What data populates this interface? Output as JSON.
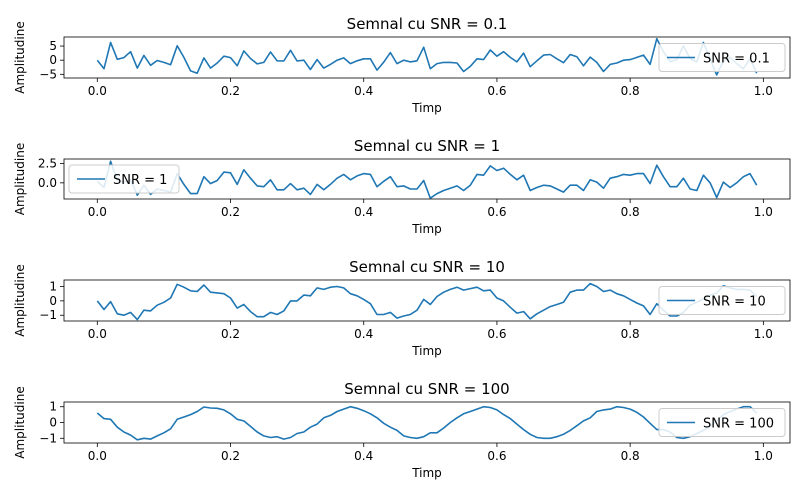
{
  "chart_data": [
    {
      "type": "line",
      "title": "Semnal cu SNR = 0.1",
      "xlabel": "Timp",
      "ylabel": "Amplitudine",
      "xlim": [
        -0.05,
        1.04
      ],
      "ylim": [
        -6.3,
        8.2
      ],
      "xticks": [
        0.0,
        0.2,
        0.4,
        0.6,
        0.8,
        1.0
      ],
      "xtick_labels": [
        "0.0",
        "0.2",
        "0.4",
        "0.6",
        "0.8",
        "1.0"
      ],
      "yticks": [
        -5,
        0,
        5
      ],
      "ytick_labels": [
        "−5",
        "0",
        "5"
      ],
      "legend_position": "right",
      "color": "#1f77b4",
      "series": [
        {
          "name": "SNR = 0.1",
          "x": [
            0.0,
            0.01,
            0.02,
            0.03,
            0.04,
            0.05,
            0.06,
            0.07,
            0.08,
            0.09,
            0.1,
            0.11,
            0.12,
            0.13,
            0.14,
            0.15,
            0.16,
            0.17,
            0.18,
            0.19,
            0.2,
            0.21,
            0.22,
            0.23,
            0.24,
            0.25,
            0.26,
            0.27,
            0.28,
            0.29,
            0.3,
            0.31,
            0.32,
            0.33,
            0.34,
            0.35,
            0.36,
            0.37,
            0.38,
            0.39,
            0.4,
            0.41,
            0.42,
            0.43,
            0.44,
            0.45,
            0.46,
            0.47,
            0.48,
            0.49,
            0.5,
            0.51,
            0.52,
            0.53,
            0.54,
            0.55,
            0.56,
            0.57,
            0.58,
            0.59,
            0.6,
            0.61,
            0.62,
            0.63,
            0.64,
            0.65,
            0.66,
            0.67,
            0.68,
            0.69,
            0.7,
            0.71,
            0.72,
            0.73,
            0.74,
            0.75,
            0.76,
            0.77,
            0.78,
            0.79,
            0.8,
            0.81,
            0.82,
            0.83,
            0.84,
            0.85,
            0.86,
            0.87,
            0.88,
            0.89,
            0.9,
            0.91,
            0.92,
            0.93,
            0.94,
            0.95,
            0.96,
            0.97,
            0.98,
            0.99
          ],
          "values": [
            0.0,
            -3.0,
            6.3,
            0.3,
            0.9,
            3.0,
            -2.8,
            1.7,
            -1.8,
            -0.1,
            -0.8,
            -1.6,
            5.1,
            1.0,
            -3.8,
            -4.6,
            0.8,
            -2.8,
            -1.0,
            1.4,
            0.9,
            -2.0,
            3.3,
            0.6,
            -1.3,
            -0.8,
            2.9,
            -0.2,
            -0.3,
            3.5,
            -0.3,
            0.0,
            -3.3,
            0.2,
            -2.8,
            -1.5,
            0.0,
            0.8,
            -1.2,
            -0.2,
            0.5,
            0.5,
            -3.5,
            -0.7,
            2.7,
            -1.2,
            0.0,
            -0.6,
            -0.2,
            4.6,
            -3.0,
            -1.2,
            -0.8,
            -0.8,
            -1.0,
            -4.0,
            -2.2,
            0.5,
            0.2,
            3.6,
            1.4,
            3.0,
            1.0,
            -0.6,
            2.5,
            -2.3,
            -0.2,
            1.8,
            2.0,
            0.5,
            -0.9,
            2.0,
            1.2,
            -2.0,
            1.1,
            -0.8,
            -4.0,
            -1.5,
            -1.0,
            0.0,
            0.2,
            1.0,
            1.8,
            -1.5,
            7.6,
            3.0,
            -0.5,
            0.2,
            5.0,
            0.6,
            -0.6,
            6.3,
            0.5,
            -5.2,
            -0.3,
            1.0,
            -1.2,
            -3.0,
            0.6,
            -4.6
          ]
        }
      ]
    },
    {
      "type": "line",
      "title": "Semnal cu SNR = 1",
      "xlabel": "Timp",
      "ylabel": "Amplitudine",
      "xlim": [
        -0.05,
        1.04
      ],
      "ylim": [
        -2.1,
        3.1
      ],
      "xticks": [
        0.0,
        0.2,
        0.4,
        0.6,
        0.8,
        1.0
      ],
      "xtick_labels": [
        "0.0",
        "0.2",
        "0.4",
        "0.6",
        "0.8",
        "1.0"
      ],
      "yticks": [
        0.0,
        2.5
      ],
      "ytick_labels": [
        "0.0",
        "2.5"
      ],
      "legend_position": "left",
      "color": "#1f77b4",
      "series": [
        {
          "name": "SNR = 1",
          "x": [
            0.0,
            0.01,
            0.02,
            0.03,
            0.04,
            0.05,
            0.06,
            0.07,
            0.08,
            0.09,
            0.1,
            0.11,
            0.12,
            0.13,
            0.14,
            0.15,
            0.16,
            0.17,
            0.18,
            0.19,
            0.2,
            0.21,
            0.22,
            0.23,
            0.24,
            0.25,
            0.26,
            0.27,
            0.28,
            0.29,
            0.3,
            0.31,
            0.32,
            0.33,
            0.34,
            0.35,
            0.36,
            0.37,
            0.38,
            0.39,
            0.4,
            0.41,
            0.42,
            0.43,
            0.44,
            0.45,
            0.46,
            0.47,
            0.48,
            0.49,
            0.5,
            0.51,
            0.52,
            0.53,
            0.54,
            0.55,
            0.56,
            0.57,
            0.58,
            0.59,
            0.6,
            0.61,
            0.62,
            0.63,
            0.64,
            0.65,
            0.66,
            0.67,
            0.68,
            0.69,
            0.7,
            0.71,
            0.72,
            0.73,
            0.74,
            0.75,
            0.76,
            0.77,
            0.78,
            0.79,
            0.8,
            0.81,
            0.82,
            0.83,
            0.84,
            0.85,
            0.86,
            0.87,
            0.88,
            0.89,
            0.9,
            0.91,
            0.92,
            0.93,
            0.94,
            0.95,
            0.96,
            0.97,
            0.98,
            0.99
          ],
          "values": [
            0.2,
            -0.6,
            2.8,
            0.3,
            0.1,
            0.4,
            -1.6,
            -0.3,
            -1.5,
            -0.8,
            -1.0,
            -1.2,
            1.2,
            -0.2,
            -1.4,
            -1.4,
            0.8,
            -0.1,
            0.3,
            1.4,
            1.3,
            -0.2,
            1.7,
            0.6,
            -0.4,
            -0.5,
            0.4,
            -0.9,
            -0.9,
            -0.1,
            -0.9,
            -0.7,
            -1.5,
            -0.2,
            -0.9,
            -0.2,
            0.6,
            1.1,
            0.4,
            0.9,
            1.2,
            1.1,
            -0.5,
            0.2,
            0.8,
            -0.5,
            -0.4,
            -0.8,
            -0.8,
            0.3,
            -2.0,
            -1.4,
            -1.0,
            -0.7,
            -0.4,
            -1.0,
            -0.3,
            1.1,
            1.0,
            2.2,
            1.6,
            1.9,
            1.1,
            0.4,
            1.0,
            -1.0,
            -0.6,
            -0.3,
            -0.4,
            -0.8,
            -1.2,
            -0.3,
            -0.3,
            -1.0,
            0.4,
            0.1,
            -0.7,
            0.6,
            0.8,
            1.1,
            1.0,
            1.2,
            1.2,
            -0.1,
            2.3,
            0.8,
            -0.5,
            -0.5,
            0.6,
            -0.8,
            -1.0,
            1.0,
            0.0,
            -1.9,
            0.1,
            -0.6,
            0.0,
            0.8,
            1.2,
            -0.3
          ]
        }
      ]
    },
    {
      "type": "line",
      "title": "Semnal cu SNR = 10",
      "xlabel": "Timp",
      "ylabel": "Amplitudine",
      "xlim": [
        -0.05,
        1.04
      ],
      "ylim": [
        -1.4,
        1.45
      ],
      "xticks": [
        0.0,
        0.2,
        0.4,
        0.6,
        0.8,
        1.0
      ],
      "xtick_labels": [
        "0.0",
        "0.2",
        "0.4",
        "0.6",
        "0.8",
        "1.0"
      ],
      "yticks": [
        -1,
        0,
        1
      ],
      "ytick_labels": [
        "−1",
        "0",
        "1"
      ],
      "legend_position": "right",
      "color": "#1f77b4",
      "series": [
        {
          "name": "SNR = 10",
          "x": [
            0.0,
            0.01,
            0.02,
            0.03,
            0.04,
            0.05,
            0.06,
            0.07,
            0.08,
            0.09,
            0.1,
            0.11,
            0.12,
            0.13,
            0.14,
            0.15,
            0.16,
            0.17,
            0.18,
            0.19,
            0.2,
            0.21,
            0.22,
            0.23,
            0.24,
            0.25,
            0.26,
            0.27,
            0.28,
            0.29,
            0.3,
            0.31,
            0.32,
            0.33,
            0.34,
            0.35,
            0.36,
            0.37,
            0.38,
            0.39,
            0.4,
            0.41,
            0.42,
            0.43,
            0.44,
            0.45,
            0.46,
            0.47,
            0.48,
            0.49,
            0.5,
            0.51,
            0.52,
            0.53,
            0.54,
            0.55,
            0.56,
            0.57,
            0.58,
            0.59,
            0.6,
            0.61,
            0.62,
            0.63,
            0.64,
            0.65,
            0.66,
            0.67,
            0.68,
            0.69,
            0.7,
            0.71,
            0.72,
            0.73,
            0.74,
            0.75,
            0.76,
            0.77,
            0.78,
            0.79,
            0.8,
            0.81,
            0.82,
            0.83,
            0.84,
            0.85,
            0.86,
            0.87,
            0.88,
            0.89,
            0.9,
            0.91,
            0.92,
            0.93,
            0.94,
            0.95,
            0.96,
            0.97,
            0.98,
            0.99
          ],
          "values": [
            0.0,
            -0.6,
            -0.05,
            -0.9,
            -1.0,
            -0.8,
            -1.3,
            -0.65,
            -0.7,
            -0.3,
            -0.1,
            0.2,
            1.15,
            0.95,
            0.7,
            0.65,
            1.1,
            0.6,
            0.55,
            0.5,
            0.2,
            -0.5,
            -0.25,
            -0.75,
            -1.1,
            -1.1,
            -0.8,
            -0.95,
            -0.7,
            0.0,
            0.0,
            0.4,
            0.35,
            0.9,
            0.8,
            0.95,
            1.0,
            0.9,
            0.5,
            0.35,
            0.1,
            -0.2,
            -0.95,
            -0.95,
            -0.8,
            -1.2,
            -1.05,
            -0.95,
            -0.65,
            0.1,
            -0.25,
            0.3,
            0.6,
            0.8,
            0.95,
            0.75,
            0.85,
            0.95,
            0.7,
            0.75,
            0.2,
            0.0,
            -0.45,
            -0.85,
            -0.75,
            -1.25,
            -0.9,
            -0.65,
            -0.4,
            -0.25,
            -0.1,
            0.6,
            0.75,
            0.75,
            1.2,
            1.0,
            0.65,
            0.75,
            0.5,
            0.35,
            0.1,
            -0.15,
            -0.35,
            -0.95,
            -0.2,
            -0.65,
            -1.05,
            -1.05,
            -0.8,
            -0.3,
            -0.1,
            0.15,
            0.4,
            0.55,
            1.05,
            0.9,
            0.8,
            0.8,
            0.75,
            0.3
          ]
        }
      ]
    },
    {
      "type": "line",
      "title": "Semnal cu SNR = 100",
      "xlabel": "Timp",
      "ylabel": "Amplitudine",
      "xlim": [
        -0.05,
        1.04
      ],
      "ylim": [
        -1.3,
        1.3
      ],
      "xticks": [
        0.0,
        0.2,
        0.4,
        0.6,
        0.8,
        1.0
      ],
      "xtick_labels": [
        "0.0",
        "0.2",
        "0.4",
        "0.6",
        "0.8",
        "1.0"
      ],
      "yticks": [
        -1,
        0,
        1
      ],
      "ytick_labels": [
        "−1",
        "0",
        "1"
      ],
      "legend_position": "right",
      "color": "#1f77b4",
      "series": [
        {
          "name": "SNR = 100",
          "x": [
            0.0,
            0.01,
            0.02,
            0.03,
            0.04,
            0.05,
            0.06,
            0.07,
            0.08,
            0.09,
            0.1,
            0.11,
            0.12,
            0.13,
            0.14,
            0.15,
            0.16,
            0.17,
            0.18,
            0.19,
            0.2,
            0.21,
            0.22,
            0.23,
            0.24,
            0.25,
            0.26,
            0.27,
            0.28,
            0.29,
            0.3,
            0.31,
            0.32,
            0.33,
            0.34,
            0.35,
            0.36,
            0.37,
            0.38,
            0.39,
            0.4,
            0.41,
            0.42,
            0.43,
            0.44,
            0.45,
            0.46,
            0.47,
            0.48,
            0.49,
            0.5,
            0.51,
            0.52,
            0.53,
            0.54,
            0.55,
            0.56,
            0.57,
            0.58,
            0.59,
            0.6,
            0.61,
            0.62,
            0.63,
            0.64,
            0.65,
            0.66,
            0.67,
            0.68,
            0.69,
            0.7,
            0.71,
            0.72,
            0.73,
            0.74,
            0.75,
            0.76,
            0.77,
            0.78,
            0.79,
            0.8,
            0.81,
            0.82,
            0.83,
            0.84,
            0.85,
            0.86,
            0.87,
            0.88,
            0.89,
            0.9,
            0.91,
            0.92,
            0.93,
            0.94,
            0.95,
            0.96,
            0.97,
            0.98,
            0.99
          ],
          "values": [
            0.6,
            0.25,
            0.2,
            -0.3,
            -0.6,
            -0.8,
            -1.1,
            -1.0,
            -1.05,
            -0.85,
            -0.65,
            -0.4,
            0.2,
            0.35,
            0.5,
            0.7,
            0.98,
            0.92,
            0.9,
            0.8,
            0.55,
            0.2,
            0.1,
            -0.25,
            -0.6,
            -0.85,
            -0.95,
            -0.9,
            -1.05,
            -0.95,
            -0.7,
            -0.6,
            -0.3,
            -0.1,
            0.3,
            0.45,
            0.7,
            0.85,
            1.0,
            0.9,
            0.75,
            0.55,
            0.3,
            -0.05,
            -0.3,
            -0.5,
            -0.85,
            -0.95,
            -1.0,
            -0.9,
            -0.65,
            -0.65,
            -0.35,
            0.0,
            0.3,
            0.55,
            0.7,
            0.85,
            1.0,
            0.95,
            0.8,
            0.5,
            0.25,
            -0.1,
            -0.45,
            -0.75,
            -0.95,
            -1.0,
            -1.0,
            -0.9,
            -0.75,
            -0.5,
            -0.2,
            0.1,
            0.3,
            0.7,
            0.8,
            0.85,
            1.0,
            0.95,
            0.85,
            0.65,
            0.35,
            -0.05,
            -0.45,
            -0.45,
            -0.6,
            -0.95,
            -1.0,
            -0.9,
            -0.7,
            -0.5,
            -0.25,
            0.1,
            0.5,
            0.7,
            0.85,
            1.0,
            1.0,
            0.6
          ]
        }
      ]
    }
  ]
}
